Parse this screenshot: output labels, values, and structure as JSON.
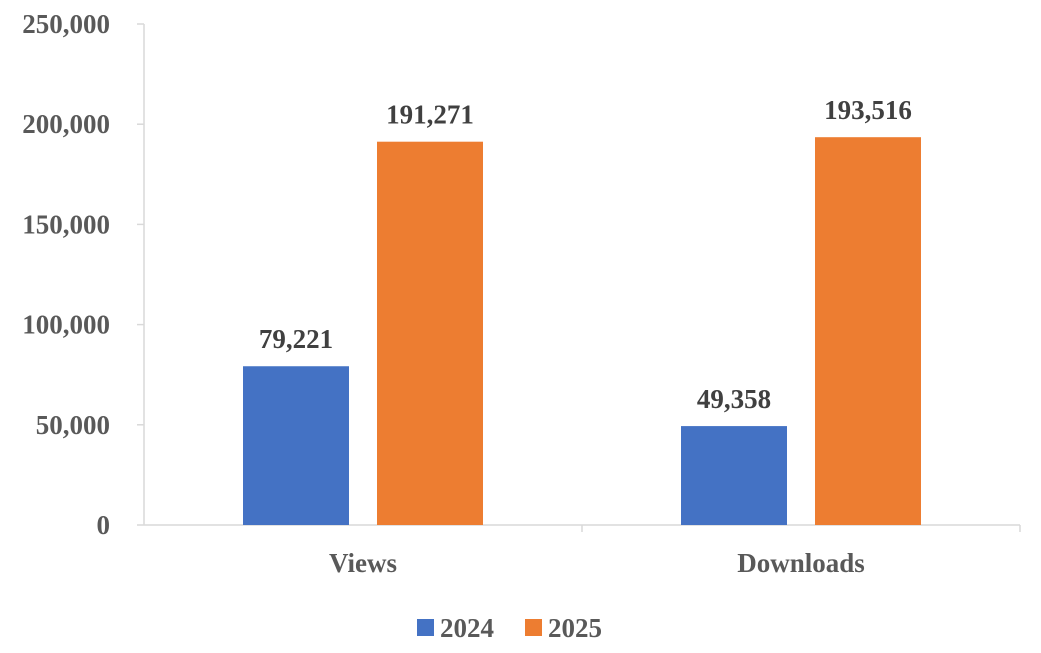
{
  "chart_data": {
    "type": "bar",
    "title": "",
    "xlabel": "",
    "ylabel": "",
    "categories": [
      "Views",
      "Downloads"
    ],
    "series": [
      {
        "name": "2024",
        "values": [
          79221,
          49358
        ],
        "color": "#4472C4"
      },
      {
        "name": "2025",
        "values": [
          191271,
          193516
        ],
        "color": "#ED7D31"
      }
    ],
    "ylim": [
      0,
      250000
    ],
    "yticks": [
      0,
      50000,
      100000,
      150000,
      200000,
      250000
    ],
    "ytick_labels": [
      "0",
      "50,000",
      "100,000",
      "150,000",
      "200,000",
      "250,000"
    ],
    "data_labels": [
      [
        "79,221",
        "49,358"
      ],
      [
        "191,271",
        "193,516"
      ]
    ],
    "grid": false,
    "legend": "bottom"
  }
}
